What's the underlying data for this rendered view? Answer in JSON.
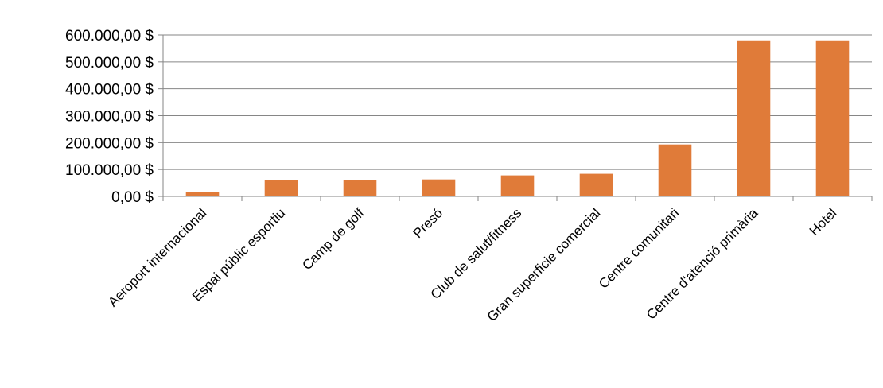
{
  "chart_data": {
    "type": "bar",
    "title": "",
    "xlabel": "",
    "ylabel": "",
    "categories": [
      "Aeroport internacional",
      "Espai públic esportiu",
      "Camp de golf",
      "Presó",
      "Club de salut/fitness",
      "Gran superficie comercial",
      "Centre comunitari",
      "Centre d'atenció primària",
      "Hotel"
    ],
    "values": [
      15000,
      60000,
      61000,
      63000,
      78000,
      84000,
      193000,
      580000,
      580000
    ],
    "ylim": [
      0,
      600000
    ],
    "yticks": [
      0,
      100000,
      200000,
      300000,
      400000,
      500000,
      600000
    ],
    "ytick_labels": [
      "0,00 $",
      "100.000,00 $",
      "200.000,00 $",
      "300.000,00 $",
      "400.000,00 $",
      "500.000,00 $",
      "600.000,00 $"
    ],
    "grid": true,
    "legend": "none",
    "colors": {
      "bar": "#E07B39",
      "grid": "#868686",
      "axis": "#868686",
      "frame": "#868686"
    }
  }
}
